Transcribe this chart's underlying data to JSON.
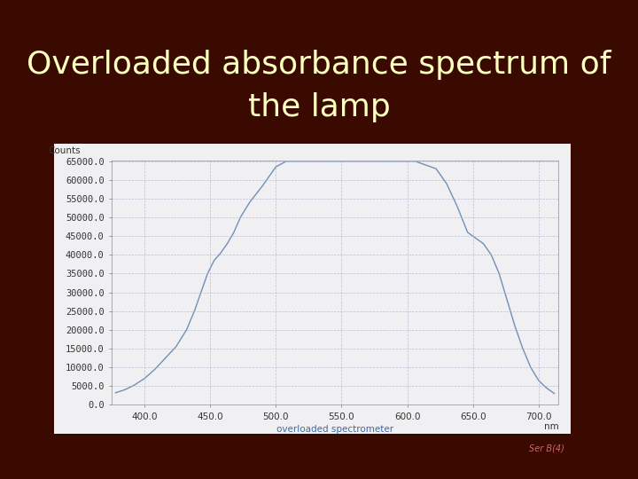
{
  "title_line1": "Overloaded absorbance spectrum of",
  "title_line2": "the lamp",
  "title_color": "#FFFFC0",
  "bg_color": "#3a0a00",
  "panel_color": "#f0f0f2",
  "line_color": "#7090b8",
  "xlabel": "overloaded spectrometer",
  "xlabel_color": "#4466aa",
  "ylabel": "Counts",
  "xlabel_unit": "nm",
  "tick_color": "#333333",
  "grid_color": "#b0b0cc",
  "xmin": 375,
  "xmax": 715,
  "ymin": 0,
  "ymax": 65000,
  "yticks": [
    0.0,
    5000.0,
    10000.0,
    15000.0,
    20000.0,
    25000.0,
    30000.0,
    35000.0,
    40000.0,
    45000.0,
    50000.0,
    55000.0,
    60000.0,
    65000.0
  ],
  "xticks": [
    400.0,
    450.0,
    500.0,
    550.0,
    600.0,
    650.0,
    700.0
  ],
  "curve_x": [
    378,
    385,
    392,
    400,
    408,
    416,
    424,
    432,
    438,
    443,
    448,
    453,
    458,
    463,
    468,
    473,
    480,
    490,
    500,
    508,
    515,
    522,
    528,
    535,
    542,
    550,
    558,
    566,
    574,
    582,
    590,
    598,
    606,
    614,
    622,
    630,
    638,
    646,
    652,
    658,
    664,
    670,
    676,
    682,
    688,
    694,
    700,
    706,
    712
  ],
  "curve_y": [
    3200,
    4000,
    5200,
    7000,
    9500,
    12500,
    15500,
    20000,
    25000,
    30000,
    35000,
    38500,
    40500,
    43000,
    46000,
    50000,
    54000,
    58500,
    63500,
    65000,
    65000,
    65000,
    65000,
    65000,
    65000,
    65000,
    65000,
    65000,
    65000,
    65000,
    65000,
    65000,
    65000,
    64000,
    63000,
    59000,
    53000,
    46000,
    44500,
    43000,
    40000,
    35000,
    28000,
    21000,
    15000,
    10000,
    6500,
    4500,
    3000
  ],
  "tick_fontsize": 7.5,
  "label_fontsize": 7.5,
  "title_fontsize": 26,
  "watermark": "Ser B(4)",
  "watermark_color": "#cc6666"
}
